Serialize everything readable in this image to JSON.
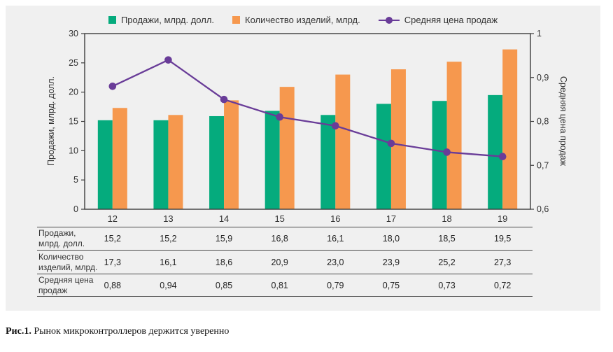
{
  "caption": {
    "label": "Рис.1.",
    "text": " Рынок микроконтроллеров держится уверенно"
  },
  "legend": {
    "items": [
      {
        "label": "Продажи, млрд. долл.",
        "marker": "square",
        "color": "#05ab7d"
      },
      {
        "label": "Количество изделий, млрд.",
        "marker": "square",
        "color": "#f6984e"
      },
      {
        "label": "Средняя цена продаж",
        "marker": "line-dot",
        "color": "#693c98"
      }
    ]
  },
  "chart_data": {
    "type": "bar",
    "title": "",
    "categories": [
      "12",
      "13",
      "14",
      "15",
      "16",
      "17",
      "18",
      "19"
    ],
    "series": [
      {
        "name": "Продажи, млрд. долл.",
        "type": "bar",
        "axis": "left",
        "color": "#05ab7d",
        "values": [
          15.2,
          15.2,
          15.9,
          16.8,
          16.1,
          18.0,
          18.5,
          19.5
        ]
      },
      {
        "name": "Количество изделий, млрд.",
        "type": "bar",
        "axis": "left",
        "color": "#f6984e",
        "values": [
          17.3,
          16.1,
          18.6,
          20.9,
          23.0,
          23.9,
          25.2,
          27.3
        ]
      },
      {
        "name": "Средняя цена продаж",
        "type": "line",
        "axis": "right",
        "color": "#693c98",
        "values": [
          0.88,
          0.94,
          0.85,
          0.81,
          0.79,
          0.75,
          0.73,
          0.72
        ]
      }
    ],
    "left_axis": {
      "label": "Продажи, млрд. долл.",
      "min": 0,
      "max": 30,
      "ticks": [
        "0",
        "5",
        "10",
        "15",
        "20",
        "25",
        "30"
      ]
    },
    "right_axis": {
      "label": "Средняя цена продаж",
      "min": 0.6,
      "max": 1,
      "ticks": [
        "0,6",
        "0,7",
        "0,8",
        "0,9",
        "1"
      ]
    },
    "legend_position": "top",
    "grid": false
  },
  "table": {
    "rows": [
      {
        "label_lines": [
          "Продажи,",
          "млрд. долл."
        ],
        "values": [
          "15,2",
          "15,2",
          "15,9",
          "16,8",
          "16,1",
          "18,0",
          "18,5",
          "19,5"
        ]
      },
      {
        "label_lines": [
          "Количество",
          "изделий, млрд."
        ],
        "values": [
          "17,3",
          "16,1",
          "18,6",
          "20,9",
          "23,0",
          "23,9",
          "25,2",
          "27,3"
        ]
      },
      {
        "label_lines": [
          "Средняя цена",
          "продаж"
        ],
        "values": [
          "0,88",
          "0,94",
          "0,85",
          "0,81",
          "0,79",
          "0,75",
          "0,73",
          "0,72"
        ]
      }
    ]
  }
}
